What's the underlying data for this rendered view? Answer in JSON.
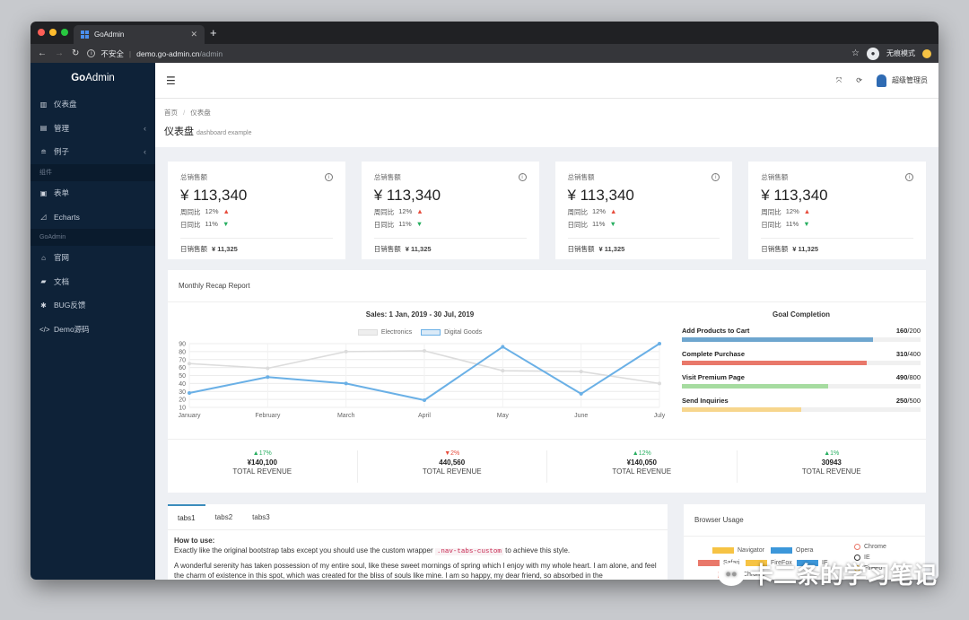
{
  "browser": {
    "tab_title": "GoAdmin",
    "new_tab": "+",
    "tab_close": "✕",
    "insecure": "不安全",
    "url_host": "demo.go-admin.cn",
    "url_path": "/admin",
    "incognito": "无痕模式"
  },
  "sidebar": {
    "logo_a": "Go",
    "logo_b": "Admin",
    "items": [
      {
        "label": "仪表盘",
        "icon": "bar-chart-icon"
      },
      {
        "label": "管理",
        "icon": "tasks-icon",
        "arrow": "‹"
      },
      {
        "label": "例子",
        "icon": "layers-icon",
        "arrow": "‹"
      }
    ],
    "header1": "组件",
    "items2": [
      {
        "label": "表单",
        "icon": "form-icon"
      },
      {
        "label": "Echarts",
        "icon": "area-chart-icon"
      }
    ],
    "header2": "GoAdmin",
    "items3": [
      {
        "label": "官网",
        "icon": "home-icon"
      },
      {
        "label": "文档",
        "icon": "book-icon"
      },
      {
        "label": "BUG反馈",
        "icon": "bug-icon"
      },
      {
        "label": "Demo源码",
        "icon": "code-icon"
      }
    ]
  },
  "topbar": {
    "user": "超级管理员"
  },
  "page": {
    "crumb_home": "首页",
    "crumb_sep": "/",
    "crumb_current": "仪表盘",
    "title": "仪表盘",
    "subtitle": "dashboard example"
  },
  "stats": [
    {
      "label": "总销售额",
      "value": "¥ 113,340",
      "wow_label": "周同比",
      "wow": "12%",
      "dod_label": "日同比",
      "dod": "11%",
      "foot_label": "日销售额",
      "foot_value": "¥ 11,325"
    },
    {
      "label": "总销售额",
      "value": "¥ 113,340",
      "wow_label": "周同比",
      "wow": "12%",
      "dod_label": "日同比",
      "dod": "11%",
      "foot_label": "日销售额",
      "foot_value": "¥ 11,325"
    },
    {
      "label": "总销售额",
      "value": "¥ 113,340",
      "wow_label": "周同比",
      "wow": "12%",
      "dod_label": "日同比",
      "dod": "11%",
      "foot_label": "日销售额",
      "foot_value": "¥ 11,325"
    },
    {
      "label": "总销售额",
      "value": "¥ 113,340",
      "wow_label": "周同比",
      "wow": "12%",
      "dod_label": "日同比",
      "dod": "11%",
      "foot_label": "日销售额",
      "foot_value": "¥ 11,325"
    }
  ],
  "recap": {
    "title": "Monthly Recap Report",
    "goal_title": "Goal Completion",
    "goals": [
      {
        "label": "Add Products to Cart",
        "value": "160",
        "total": "/200",
        "progress": 0.8,
        "color": "#6ea6cf"
      },
      {
        "label": "Complete Purchase",
        "value": "310",
        "total": "/400",
        "progress": 0.775,
        "color": "#e9786a"
      },
      {
        "label": "Visit Premium Page",
        "value": "490",
        "total": "/800",
        "progress": 0.6125,
        "color": "#a6dca0"
      },
      {
        "label": "Send Inquiries",
        "value": "250",
        "total": "/500",
        "progress": 0.5,
        "color": "#f7d68d"
      }
    ],
    "revenue": [
      {
        "pct": "▲17%",
        "dir": "up",
        "amount": "¥140,100",
        "label": "TOTAL REVENUE"
      },
      {
        "pct": "▼2%",
        "dir": "down",
        "amount": "440,560",
        "label": "TOTAL REVENUE"
      },
      {
        "pct": "▲12%",
        "dir": "up",
        "amount": "¥140,050",
        "label": "TOTAL REVENUE"
      },
      {
        "pct": "▲1%",
        "dir": "up",
        "amount": "30943",
        "label": "TOTAL REVENUE"
      }
    ]
  },
  "chart_data": {
    "type": "line",
    "title": "Sales: 1 Jan, 2019 - 30 Jul, 2019",
    "categories": [
      "January",
      "February",
      "March",
      "April",
      "May",
      "June",
      "July"
    ],
    "ylim": [
      10,
      90
    ],
    "yticks": [
      10,
      20,
      30,
      40,
      50,
      60,
      70,
      80,
      90
    ],
    "series": [
      {
        "name": "Electronics",
        "values": [
          65,
          59,
          80,
          81,
          56,
          55,
          40
        ],
        "color": "#dcdcdc"
      },
      {
        "name": "Digital Goods",
        "values": [
          28,
          48,
          40,
          19,
          86,
          27,
          90
        ],
        "color": "#6ab0e6"
      }
    ],
    "grid": true,
    "legend": "top"
  },
  "tabs": {
    "items": [
      "tabs1",
      "tabs2",
      "tabs3"
    ],
    "heading": "How to use:",
    "line1_a": "Exactly like the original bootstrap tabs except you should use the custom wrapper",
    "line1_code": ".nav-tabs-custom",
    "line1_b": "to achieve this style.",
    "para": "A wonderful serenity has taken possession of my entire soul, like these sweet mornings of spring which I enjoy with my whole heart. I am alone, and feel the charm of existence in this spot, which was created for the bliss of souls like mine. I am so happy, my dear friend, so absorbed in the"
  },
  "browser_usage": {
    "title": "Browser Usage",
    "legend": [
      {
        "name": "Navigator",
        "color": "#f6c344"
      },
      {
        "name": "Opera",
        "color": "#3c97da"
      },
      {
        "name": "Safari",
        "color": "#e9786a"
      },
      {
        "name": "FireFox",
        "color": "#f6c344"
      },
      {
        "name": "IE",
        "color": "#3c97da"
      },
      {
        "name": "Chrome",
        "color": "#e9786a"
      }
    ],
    "rings": [
      {
        "name": "Chrome",
        "color": "#e9786a"
      },
      {
        "name": "IE",
        "color": "#333333"
      },
      {
        "name": "FireFo",
        "color": "#f6c344"
      }
    ]
  },
  "watermark": "卡二条的学习笔记"
}
